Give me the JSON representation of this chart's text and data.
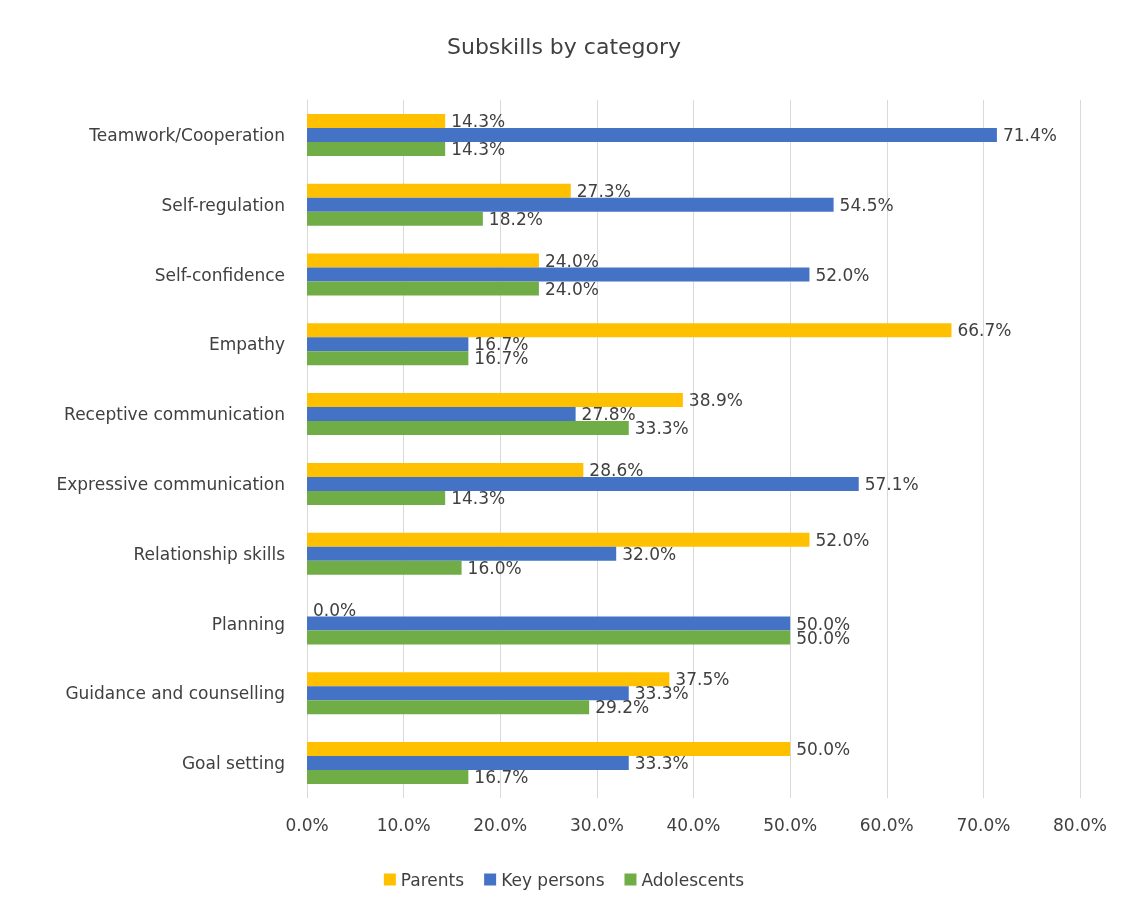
{
  "chart_data": {
    "type": "bar",
    "title": "Subskills by category",
    "orientation": "horizontal",
    "categories": [
      "Teamwork/Cooperation",
      "Self-regulation",
      "Self-confidence",
      "Empathy",
      "Receptive communication",
      "Expressive communication",
      "Relationship skills",
      "Planning",
      "Guidance and counselling",
      "Goal setting"
    ],
    "series": [
      {
        "name": "Parents",
        "color": "#ffc000",
        "values": [
          14.3,
          27.3,
          24.0,
          66.7,
          38.9,
          28.6,
          52.0,
          0.0,
          37.5,
          50.0
        ],
        "value_labels": [
          "14.3%",
          "27.3%",
          "24.0%",
          "66.7%",
          "38.9%",
          "28.6%",
          "52.0%",
          "0.0%",
          "37.5%",
          "50.0%"
        ]
      },
      {
        "name": "Key persons",
        "color": "#4472c4",
        "values": [
          71.4,
          54.5,
          52.0,
          16.7,
          27.8,
          57.1,
          32.0,
          50.0,
          33.3,
          33.3
        ],
        "value_labels": [
          "71.4%",
          "54.5%",
          "52.0%",
          "16.7%",
          "27.8%",
          "57.1%",
          "32.0%",
          "50.0%",
          "33.3%",
          "33.3%"
        ]
      },
      {
        "name": "Adolescents",
        "color": "#70ad47",
        "values": [
          14.3,
          18.2,
          24.0,
          16.7,
          33.3,
          14.3,
          16.0,
          50.0,
          29.2,
          16.7
        ],
        "value_labels": [
          "14.3%",
          "18.2%",
          "24.0%",
          "16.7%",
          "33.3%",
          "14.3%",
          "16.0%",
          "50.0%",
          "29.2%",
          "16.7%"
        ]
      }
    ],
    "xlim": [
      0,
      80
    ],
    "xticks": [
      {
        "value": 0,
        "label": "0.0%"
      },
      {
        "value": 10,
        "label": "10.0%"
      },
      {
        "value": 20,
        "label": "20.0%"
      },
      {
        "value": 30,
        "label": "30.0%"
      },
      {
        "value": 40,
        "label": "40.0%"
      },
      {
        "value": 50,
        "label": "50.0%"
      },
      {
        "value": 60,
        "label": "60.0%"
      },
      {
        "value": 70,
        "label": "70.0%"
      },
      {
        "value": 80,
        "label": "80.0%"
      }
    ],
    "grid": "x",
    "legend": "bottom"
  }
}
